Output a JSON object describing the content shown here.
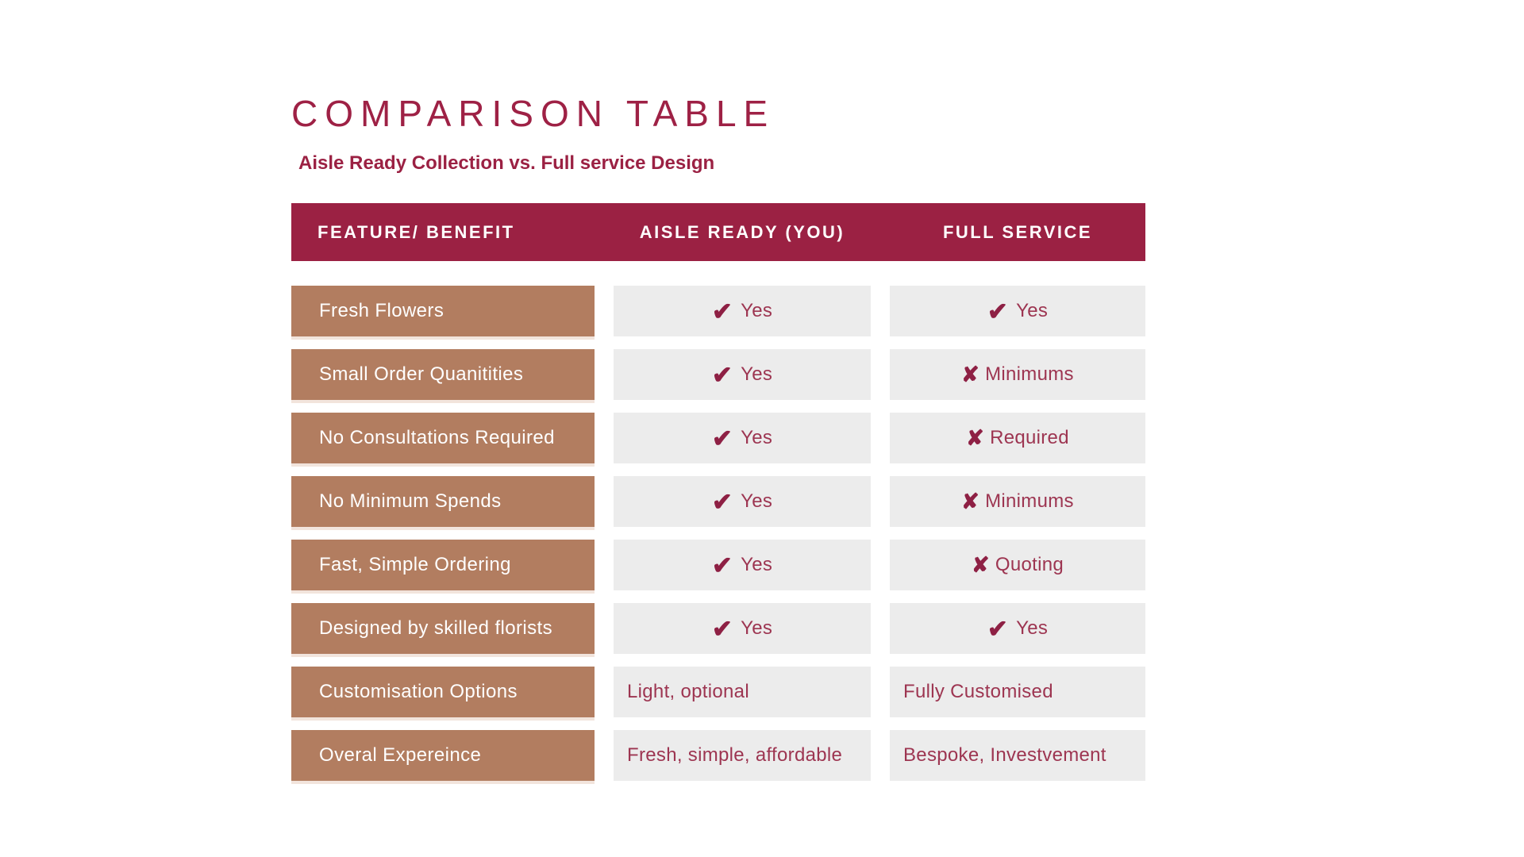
{
  "title": "COMPARISON TABLE",
  "subtitle": "Aisle Ready Collection vs. Full service Design",
  "icons": {
    "check": "✔",
    "cross": "✘"
  },
  "colors": {
    "maroon": "#9b2143",
    "title_maroon": "#9e2145",
    "tan": "#b27d60",
    "cell_gray": "#ececec",
    "check_maroon": "#8e2044",
    "cell_text": "#9d3551",
    "white": "#ffffff"
  },
  "table": {
    "headers": [
      {
        "label": "FEATURE/ BENEFIT"
      },
      {
        "label": "AISLE READY (YOU)"
      },
      {
        "label": "FULL SERVICE"
      }
    ],
    "rows": [
      {
        "label": "Fresh Flowers",
        "aisle_ready": {
          "icon": "check",
          "text": "Yes",
          "align": "center"
        },
        "full_service": {
          "icon": "check",
          "text": "Yes",
          "align": "center"
        }
      },
      {
        "label": "Small Order Quanitities",
        "aisle_ready": {
          "icon": "check",
          "text": "Yes",
          "align": "center"
        },
        "full_service": {
          "icon": "cross",
          "text": "Minimums",
          "align": "center"
        }
      },
      {
        "label": "No Consultations Required",
        "aisle_ready": {
          "icon": "check",
          "text": "Yes",
          "align": "center"
        },
        "full_service": {
          "icon": "cross",
          "text": "Required",
          "align": "center"
        }
      },
      {
        "label": "No Minimum Spends",
        "aisle_ready": {
          "icon": "check",
          "text": "Yes",
          "align": "center"
        },
        "full_service": {
          "icon": "cross",
          "text": "Minimums",
          "align": "center"
        }
      },
      {
        "label": "Fast, Simple Ordering",
        "aisle_ready": {
          "icon": "check",
          "text": "Yes",
          "align": "center"
        },
        "full_service": {
          "icon": "cross",
          "text": "Quoting",
          "align": "center"
        }
      },
      {
        "label": "Designed by skilled florists",
        "aisle_ready": {
          "icon": "check",
          "text": "Yes",
          "align": "center"
        },
        "full_service": {
          "icon": "check",
          "text": "Yes",
          "align": "center"
        }
      },
      {
        "label": "Customisation Options",
        "aisle_ready": {
          "icon": null,
          "text": "Light, optional",
          "align": "left"
        },
        "full_service": {
          "icon": null,
          "text": "Fully Customised",
          "align": "left"
        }
      },
      {
        "label": "Overal Expereince",
        "aisle_ready": {
          "icon": null,
          "text": "Fresh, simple, affordable",
          "align": "left"
        },
        "full_service": {
          "icon": null,
          "text": "Bespoke, Investvement",
          "align": "left"
        }
      }
    ]
  }
}
